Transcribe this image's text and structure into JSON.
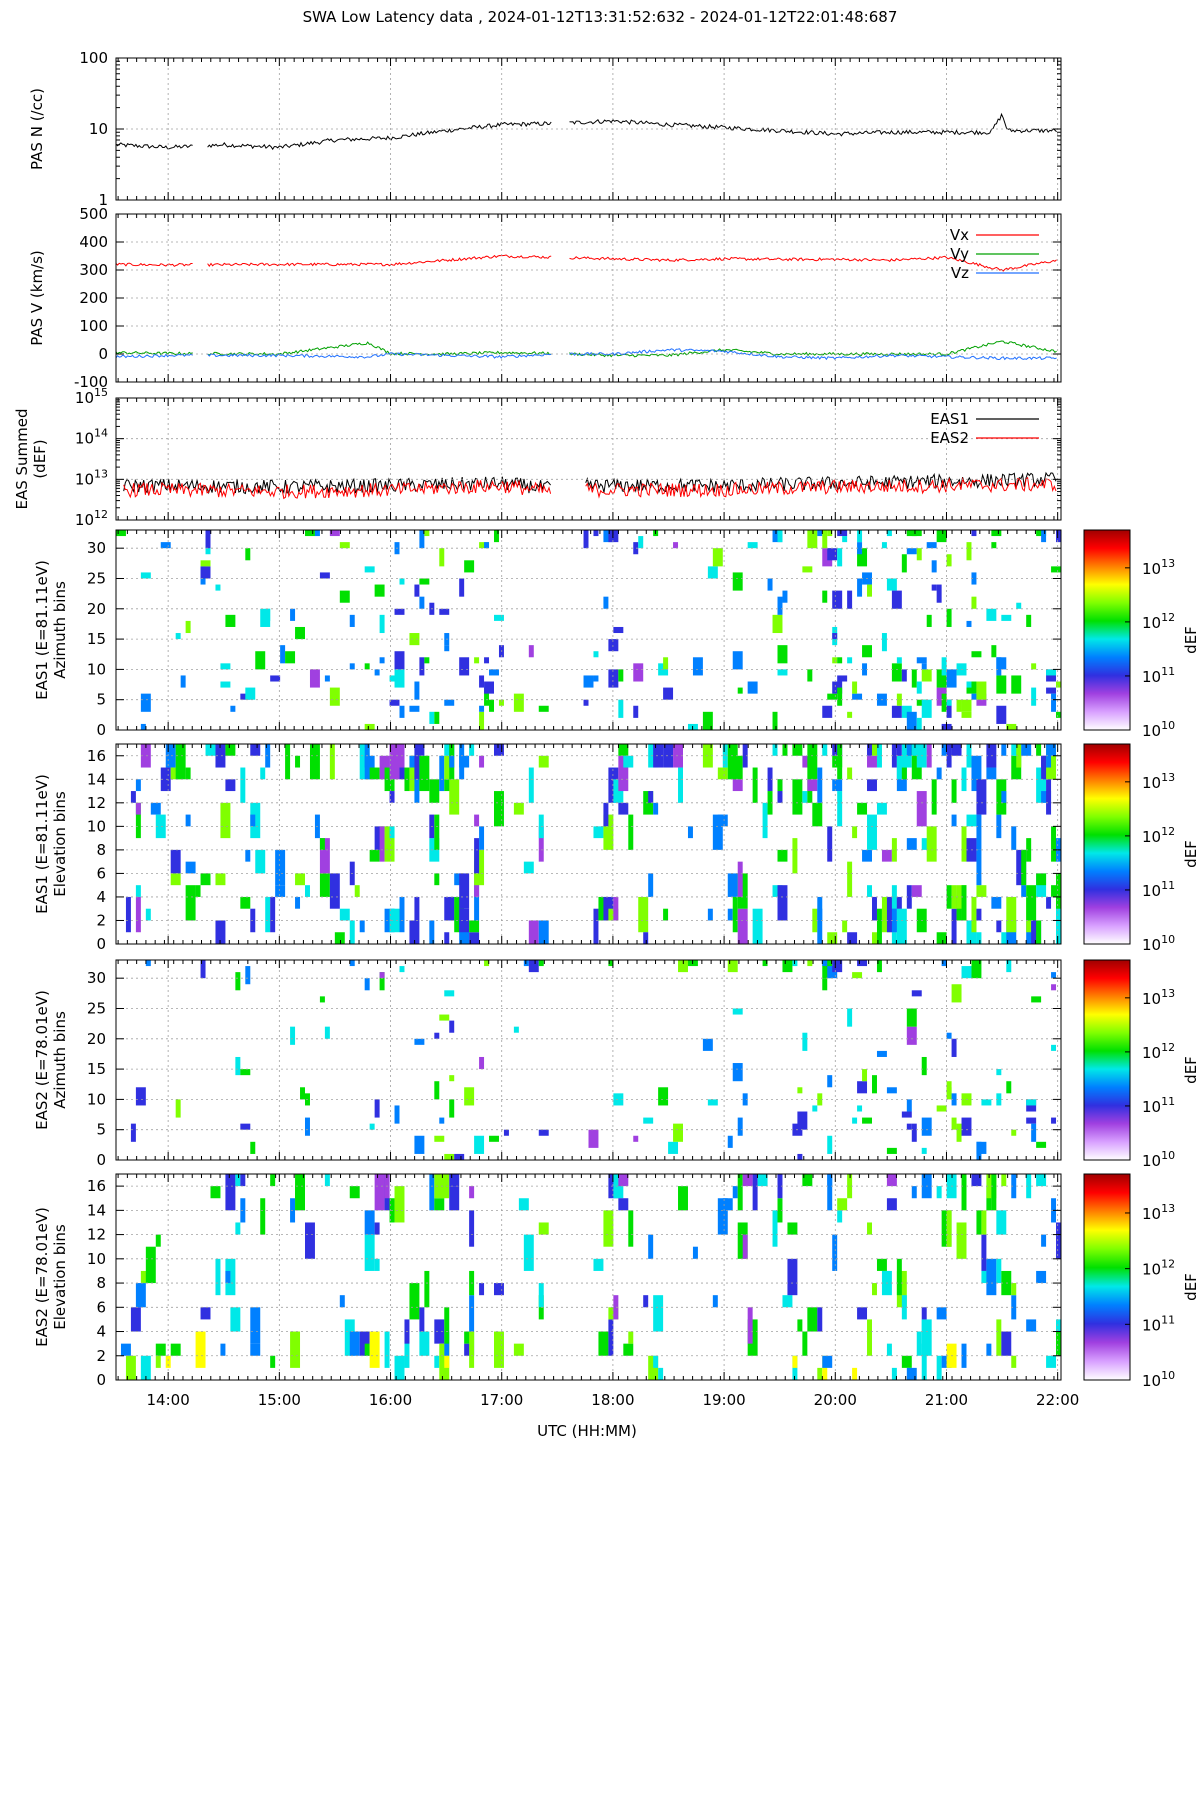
{
  "title": "SWA Low Latency data ,  2024-01-12T13:31:52:632 - 2024-01-12T22:01:48:687",
  "xlabel": "UTC (HH:MM)",
  "x_ticks": [
    "14:00",
    "15:00",
    "16:00",
    "17:00",
    "18:00",
    "19:00",
    "20:00",
    "21:00",
    "22:00"
  ],
  "colorbar": {
    "label": "dEF",
    "tick_labels": [
      {
        "base": "10",
        "exp": "10"
      },
      {
        "base": "10",
        "exp": "11"
      },
      {
        "base": "10",
        "exp": "12"
      },
      {
        "base": "10",
        "exp": "13"
      }
    ],
    "range_log10": [
      10,
      13.7
    ],
    "colors": [
      "#ffffff",
      "#d8a0ff",
      "#a040e0",
      "#3030e0",
      "#0080ff",
      "#00e8e8",
      "#00e000",
      "#80ff00",
      "#ffff00",
      "#ff8000",
      "#ff0000",
      "#a00000"
    ]
  },
  "chart_data": [
    {
      "type": "line",
      "ylabel": "PAS N (/cc)",
      "yscale": "log",
      "ylim": [
        1,
        100
      ],
      "yticks": [
        "1",
        "10",
        "100"
      ],
      "gap_hours": [
        [
          14.23,
          14.35
        ],
        [
          17.45,
          17.6
        ]
      ],
      "series": [
        {
          "color": "#000000",
          "x_hours": [
            13.53,
            14.0,
            14.5,
            15.0,
            15.5,
            16.0,
            16.5,
            17.0,
            17.5,
            18.0,
            18.5,
            19.0,
            19.5,
            20.0,
            20.5,
            21.0,
            21.4,
            21.5,
            21.55,
            22.0
          ],
          "values": [
            6,
            5.5,
            6,
            5.5,
            7,
            7.5,
            9.5,
            11.5,
            12,
            13,
            11.5,
            10.5,
            9.5,
            8.5,
            9,
            9,
            9,
            16,
            9.5,
            9.5
          ]
        }
      ]
    },
    {
      "type": "line",
      "ylabel": "PAS V (km/s)",
      "ylim": [
        -100,
        500
      ],
      "yticks": [
        "-100",
        "0",
        "100",
        "200",
        "300",
        "400",
        "500"
      ],
      "gap_hours": [
        [
          14.23,
          14.35
        ],
        [
          17.45,
          17.6
        ]
      ],
      "series": [
        {
          "name": "Vx",
          "color": "#ff0000",
          "x_hours": [
            13.53,
            14.0,
            15.0,
            16.0,
            16.5,
            17.0,
            17.5,
            18.0,
            18.5,
            19.0,
            19.5,
            20.0,
            20.5,
            21.0,
            21.5,
            22.0
          ],
          "values": [
            320,
            318,
            320,
            320,
            335,
            350,
            345,
            340,
            335,
            340,
            338,
            338,
            335,
            345,
            300,
            335
          ]
        },
        {
          "name": "Vy",
          "color": "#00a000",
          "x_hours": [
            13.53,
            14.0,
            15.0,
            15.8,
            16.0,
            16.5,
            17.0,
            17.5,
            18.0,
            18.5,
            19.0,
            19.5,
            20.0,
            20.5,
            21.0,
            21.5,
            22.0
          ],
          "values": [
            5,
            2,
            0,
            40,
            2,
            0,
            5,
            2,
            -5,
            -5,
            15,
            0,
            0,
            0,
            0,
            45,
            8
          ]
        },
        {
          "name": "Vz",
          "color": "#2070ff",
          "x_hours": [
            13.53,
            14.0,
            15.0,
            15.8,
            16.0,
            16.5,
            17.0,
            17.5,
            18.0,
            18.5,
            19.0,
            19.5,
            20.0,
            20.5,
            21.0,
            21.5,
            22.0
          ],
          "values": [
            -10,
            -5,
            -5,
            -10,
            0,
            -5,
            -10,
            0,
            0,
            15,
            10,
            -10,
            -15,
            -5,
            -10,
            -15,
            -15
          ]
        }
      ]
    },
    {
      "type": "line",
      "ylabel": "EAS Summed (dEF)",
      "yscale": "log",
      "ylim": [
        1000000000000.0,
        1000000000000000.0
      ],
      "yticks_exp": [
        "12",
        "13",
        "14",
        "15"
      ],
      "gap_hours": [
        [
          17.45,
          17.75
        ]
      ],
      "series": [
        {
          "name": "EAS1",
          "color": "#000000",
          "x_hours": [
            13.6,
            14.0,
            15.0,
            16.0,
            17.0,
            17.45,
            17.75,
            18.0,
            19.0,
            20.0,
            21.0,
            22.0
          ],
          "values": [
            7000000000000.0,
            7000000000000.0,
            6500000000000.0,
            7000000000000.0,
            8000000000000.0,
            6000000000000.0,
            7000000000000.0,
            7000000000000.0,
            7000000000000.0,
            8000000000000.0,
            9000000000000.0,
            10000000000000.0
          ]
        },
        {
          "name": "EAS2",
          "color": "#ff0000",
          "x_hours": [
            13.6,
            14.0,
            15.0,
            16.0,
            17.0,
            17.45,
            17.75,
            18.0,
            19.0,
            20.0,
            21.0,
            22.0
          ],
          "values": [
            5500000000000.0,
            5500000000000.0,
            5000000000000.0,
            5500000000000.0,
            7000000000000.0,
            5000000000000.0,
            5500000000000.0,
            5500000000000.0,
            5500000000000.0,
            6500000000000.0,
            7000000000000.0,
            7500000000000.0
          ]
        }
      ]
    },
    {
      "type": "heatmap",
      "ylabel": [
        "EAS1 (E=81.11eV)",
        "Azimuth bins"
      ],
      "ylim": [
        0,
        33
      ],
      "yticks": [
        "0",
        "5",
        "10",
        "15",
        "20",
        "25",
        "30"
      ],
      "bins": 33,
      "colorscale_log10": [
        10,
        13.7
      ]
    },
    {
      "type": "heatmap",
      "ylabel": [
        "EAS1 (E=81.11eV)",
        "Elevation bins"
      ],
      "ylim": [
        0,
        17
      ],
      "yticks": [
        "0",
        "2",
        "4",
        "6",
        "8",
        "10",
        "12",
        "14",
        "16"
      ],
      "bins": 17,
      "colorscale_log10": [
        10,
        13.7
      ]
    },
    {
      "type": "heatmap",
      "ylabel": [
        "EAS2 (E=78.01eV)",
        "Azimuth bins"
      ],
      "ylim": [
        0,
        33
      ],
      "yticks": [
        "0",
        "5",
        "10",
        "15",
        "20",
        "25",
        "30"
      ],
      "bins": 33,
      "colorscale_log10": [
        10,
        13.7
      ]
    },
    {
      "type": "heatmap",
      "ylabel": [
        "EAS2 (E=78.01eV)",
        "Elevation bins"
      ],
      "ylim": [
        0,
        17
      ],
      "yticks": [
        "0",
        "2",
        "4",
        "6",
        "8",
        "10",
        "12",
        "14",
        "16"
      ],
      "bins": 17,
      "colorscale_log10": [
        10,
        13.7
      ]
    }
  ]
}
